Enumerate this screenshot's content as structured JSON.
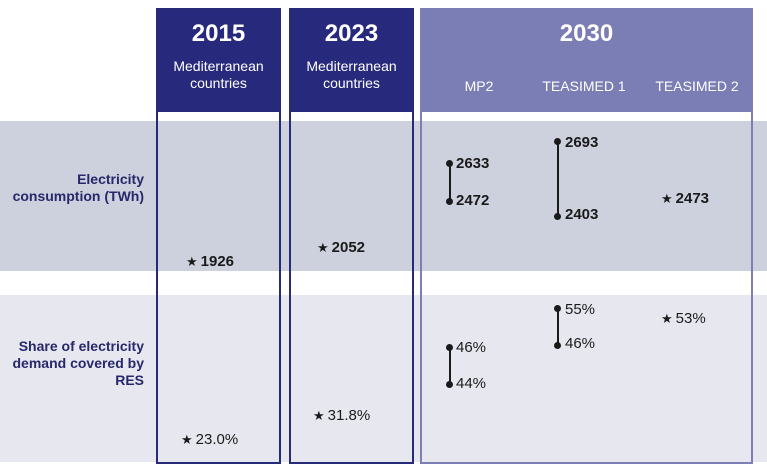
{
  "header": {
    "columns": [
      {
        "year": "2015",
        "region": "Mediterranean countries"
      },
      {
        "year": "2023",
        "region": "Mediterranean countries"
      },
      {
        "year": "2030",
        "scenarios": [
          "MP2",
          "TEASIMED 1",
          "TEASIMED 2"
        ]
      }
    ]
  },
  "rows": [
    {
      "label": "Electricity consumption (TWh)"
    },
    {
      "label": "Share of electricity demand covered by RES"
    }
  ],
  "marker_symbol": "★",
  "chart_data": {
    "type": "table",
    "row_labels": [
      "Electricity consumption (TWh)",
      "Share of electricity demand covered by RES"
    ],
    "consumption": {
      "y2015": "1926",
      "y2023": "2052",
      "mp2": {
        "high": "2633",
        "low": "2472"
      },
      "teasimed1": {
        "high": "2693",
        "low": "2403"
      },
      "teasimed2": "2473"
    },
    "res_share": {
      "y2015": "23.0%",
      "y2023": "31.8%",
      "mp2": {
        "high": "46%",
        "low": "44%"
      },
      "teasimed1": {
        "high": "55%",
        "low": "46%"
      },
      "teasimed2": "53%"
    },
    "colors": {
      "dark_header": "#272a7c",
      "light_header": "#7b7eb5",
      "band_top": "#cdd0dd",
      "band_bottom": "#e7e8ef"
    }
  }
}
